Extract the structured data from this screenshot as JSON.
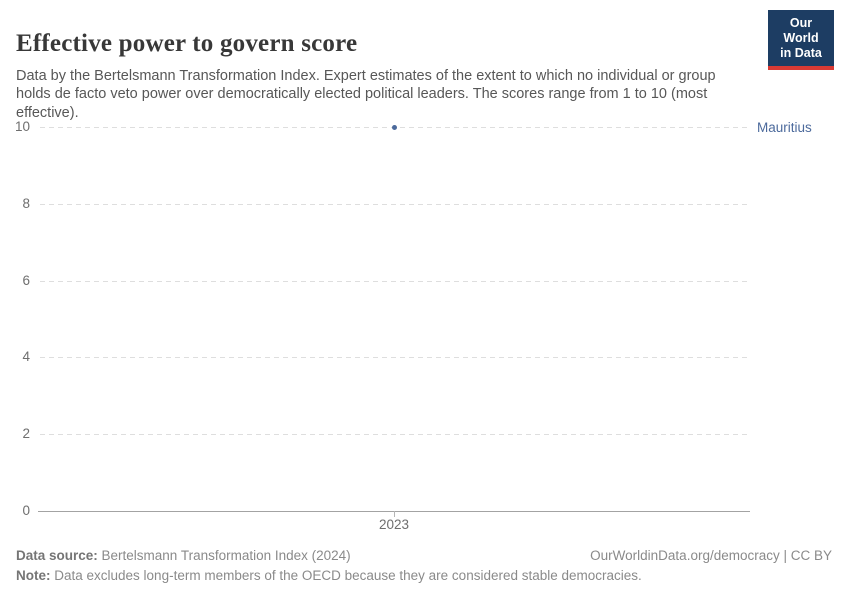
{
  "header": {
    "title": "Effective power to govern score",
    "subtitle": "Data by the Bertelsmann Transformation Index. Expert estimates of the extent to which no individual or group holds de facto veto power over democratically elected political leaders. The scores range from 1 to 10 (most effective).",
    "logo": {
      "line1": "Our World",
      "line2": "in Data",
      "bg_color": "#1d3d63",
      "accent_color": "#d93a34"
    }
  },
  "chart_data": {
    "type": "scatter",
    "title": "Effective power to govern score",
    "x": [
      2023
    ],
    "series": [
      {
        "name": "Mauritius",
        "values": [
          10
        ]
      }
    ],
    "xlabel": "",
    "ylabel": "",
    "ylim": [
      0,
      10
    ],
    "yticks": [
      0,
      2,
      4,
      6,
      8,
      10
    ],
    "xticks": [
      "2023"
    ],
    "grid": "horizontal-dashed",
    "legend_position": "right-of-point",
    "point_color": "#4c6a9c",
    "grid_color": "#dedede",
    "axis_color": "#a3a3a3",
    "tick_label_color": "#6e6e6e"
  },
  "footer": {
    "source_label": "Data source:",
    "source_text": " Bertelsmann Transformation Index (2024)",
    "rights": "OurWorldinData.org/democracy | CC BY",
    "note_label": "Note:",
    "note_text": " Data excludes long-term members of the OECD because they are considered stable democracies."
  }
}
